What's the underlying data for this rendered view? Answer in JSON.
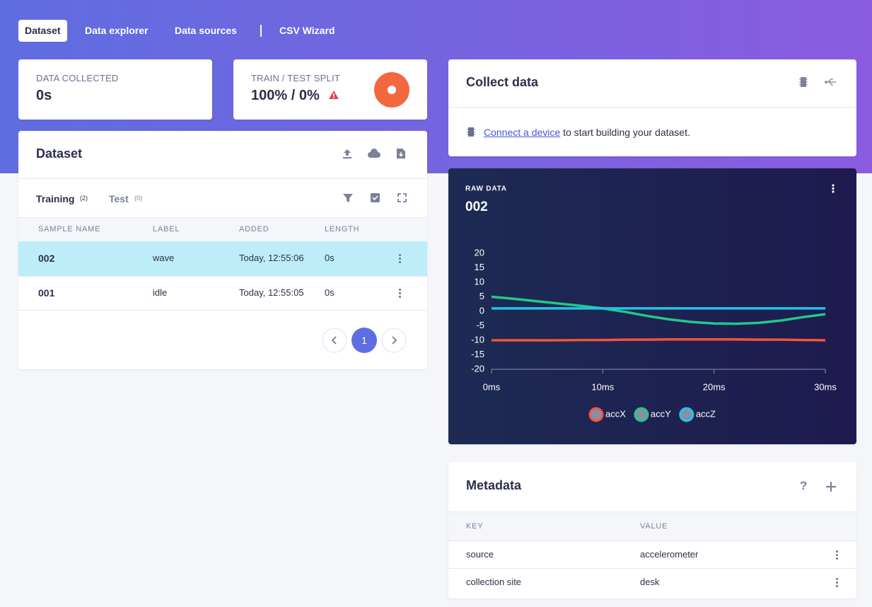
{
  "nav": {
    "tabs": [
      "Dataset",
      "Data explorer",
      "Data sources",
      "CSV Wizard"
    ]
  },
  "stats": {
    "collected_label": "DATA COLLECTED",
    "collected_value": "0s",
    "split_label": "TRAIN / TEST SPLIT",
    "split_value": "100% / 0%"
  },
  "dataset": {
    "title": "Dataset",
    "tabs": [
      {
        "name": "Training",
        "count": "(2)"
      },
      {
        "name": "Test",
        "count": "(0)"
      }
    ],
    "columns": [
      "SAMPLE NAME",
      "LABEL",
      "ADDED",
      "LENGTH"
    ],
    "rows": [
      [
        "002",
        "wave",
        "Today, 12:55:06",
        "0s"
      ],
      [
        "001",
        "idle",
        "Today, 12:55:05",
        "0s"
      ]
    ],
    "page": 1
  },
  "collect": {
    "title": "Collect data",
    "link": "Connect a device",
    "text": "to start building your dataset."
  },
  "chart_data": {
    "type": "line",
    "subtitle": "RAW DATA",
    "title": "002",
    "x": [
      0,
      2,
      4,
      6,
      8,
      10,
      12,
      14,
      16,
      18,
      20,
      22,
      24,
      26,
      28,
      30
    ],
    "xlim": [
      0,
      30
    ],
    "xticks": [
      {
        "value": 0,
        "label": "0ms"
      },
      {
        "value": 10,
        "label": "10ms"
      },
      {
        "value": 20,
        "label": "20ms"
      },
      {
        "value": 30,
        "label": "30ms"
      }
    ],
    "ylim": [
      -20,
      20
    ],
    "yticks": [
      20,
      15,
      10,
      5,
      0,
      -5,
      -10,
      -15,
      -20
    ],
    "series": [
      {
        "name": "accX",
        "color": "#f4533a",
        "values": [
          -10,
          -10,
          -10,
          -10,
          -9.9,
          -9.9,
          -9.8,
          -9.8,
          -9.7,
          -9.7,
          -9.7,
          -9.7,
          -9.8,
          -9.8,
          -9.9,
          -10
        ]
      },
      {
        "name": "accY",
        "color": "#21c98a",
        "values": [
          5,
          4.3,
          3.5,
          2.7,
          1.9,
          1,
          -0.2,
          -1.6,
          -2.8,
          -3.7,
          -4.2,
          -4.3,
          -4,
          -3.2,
          -2,
          -1
        ]
      },
      {
        "name": "accZ",
        "color": "#22c4e6",
        "values": [
          1,
          1,
          1,
          1,
          1,
          1,
          1,
          1,
          1,
          1,
          1,
          1,
          1,
          1,
          1,
          1
        ]
      }
    ]
  },
  "metadata": {
    "title": "Metadata",
    "columns": [
      "KEY",
      "VALUE"
    ],
    "rows": [
      [
        "source",
        "accelerometer"
      ],
      [
        "collection site",
        "desk"
      ]
    ]
  }
}
